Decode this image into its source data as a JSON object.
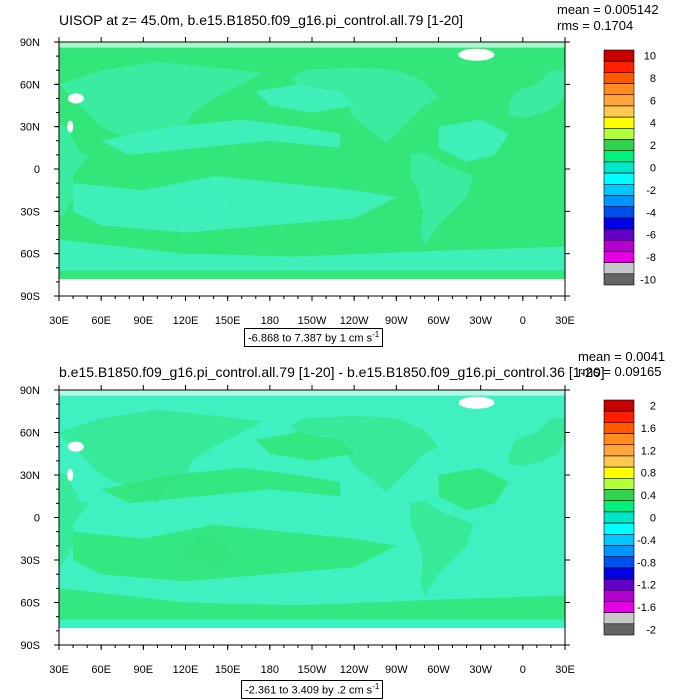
{
  "chart_data": [
    {
      "type": "heatmap",
      "title": "UISOP at z=  45.0m, b.e15.B1850.f09_g16.pi_control.all.79 [1-20]",
      "stats": {
        "mean": "mean = 0.005142",
        "rms": "rms = 0.1704"
      },
      "range_label": "-6.868 to 7.387 by 1 cm s",
      "range_units_exp": "-1",
      "x_tick_labels": [
        "30E",
        "60E",
        "90E",
        "120E",
        "150E",
        "180",
        "150W",
        "120W",
        "90W",
        "60W",
        "30W",
        "0",
        "30E"
      ],
      "y_tick_labels": [
        "90N",
        "60N",
        "30N",
        "0",
        "30S",
        "60S",
        "90S"
      ],
      "xlim": [
        30,
        390
      ],
      "ylim": [
        -90,
        90
      ],
      "colorbar": {
        "labels": [
          "10",
          "8",
          "6",
          "4",
          "2",
          "0",
          "-2",
          "-4",
          "-6",
          "-8",
          "-10"
        ],
        "colors": [
          "#c80000",
          "#ff1e00",
          "#ff5a00",
          "#ff8c1e",
          "#ffa53c",
          "#ffc850",
          "#ffff00",
          "#b4ff3c",
          "#32d250",
          "#00f07d",
          "#00e6c8",
          "#00ffff",
          "#00c8ff",
          "#0096ff",
          "#0050f0",
          "#0000e6",
          "#6400c8",
          "#b400d2",
          "#e600e6",
          "#c8c8c8",
          "#646464"
        ]
      },
      "field": {
        "ocean_color": "#32e67a",
        "anomaly_color": "#3ff0c0",
        "land_color": "#ffffff"
      }
    },
    {
      "type": "heatmap",
      "title": "b.e15.B1850.f09_g16.pi_control.all.79 [1-20] - b.e15.B1850.f09_g16.pi_control.36 [1-20]",
      "stats": {
        "mean": "mean = 0.0041",
        "rms": "rms = 0.09165"
      },
      "range_label": "-2.361 to 3.409 by .2 cm s",
      "range_units_exp": "-1",
      "x_tick_labels": [
        "30E",
        "60E",
        "90E",
        "120E",
        "150E",
        "180",
        "150W",
        "120W",
        "90W",
        "60W",
        "30W",
        "0",
        "30E"
      ],
      "y_tick_labels": [
        "90N",
        "60N",
        "30N",
        "0",
        "30S",
        "60S",
        "90S"
      ],
      "xlim": [
        30,
        390
      ],
      "ylim": [
        -90,
        90
      ],
      "colorbar": {
        "labels": [
          "2",
          "1.6",
          "1.2",
          "0.8",
          "0.4",
          "0",
          "-0.4",
          "-0.8",
          "-1.2",
          "-1.6",
          "-2"
        ],
        "colors": [
          "#c80000",
          "#ff1e00",
          "#ff5a00",
          "#ff8c1e",
          "#ffa53c",
          "#ffc850",
          "#ffff00",
          "#b4ff3c",
          "#32d250",
          "#00f07d",
          "#00e6c8",
          "#00ffff",
          "#00c8ff",
          "#0096ff",
          "#0050f0",
          "#0000e6",
          "#6400c8",
          "#b400d2",
          "#e600e6",
          "#c8c8c8",
          "#646464"
        ]
      },
      "field": {
        "ocean_color": "#3ff0c0",
        "anomaly_color": "#32e67a",
        "land_color": "#ffffff"
      }
    }
  ]
}
